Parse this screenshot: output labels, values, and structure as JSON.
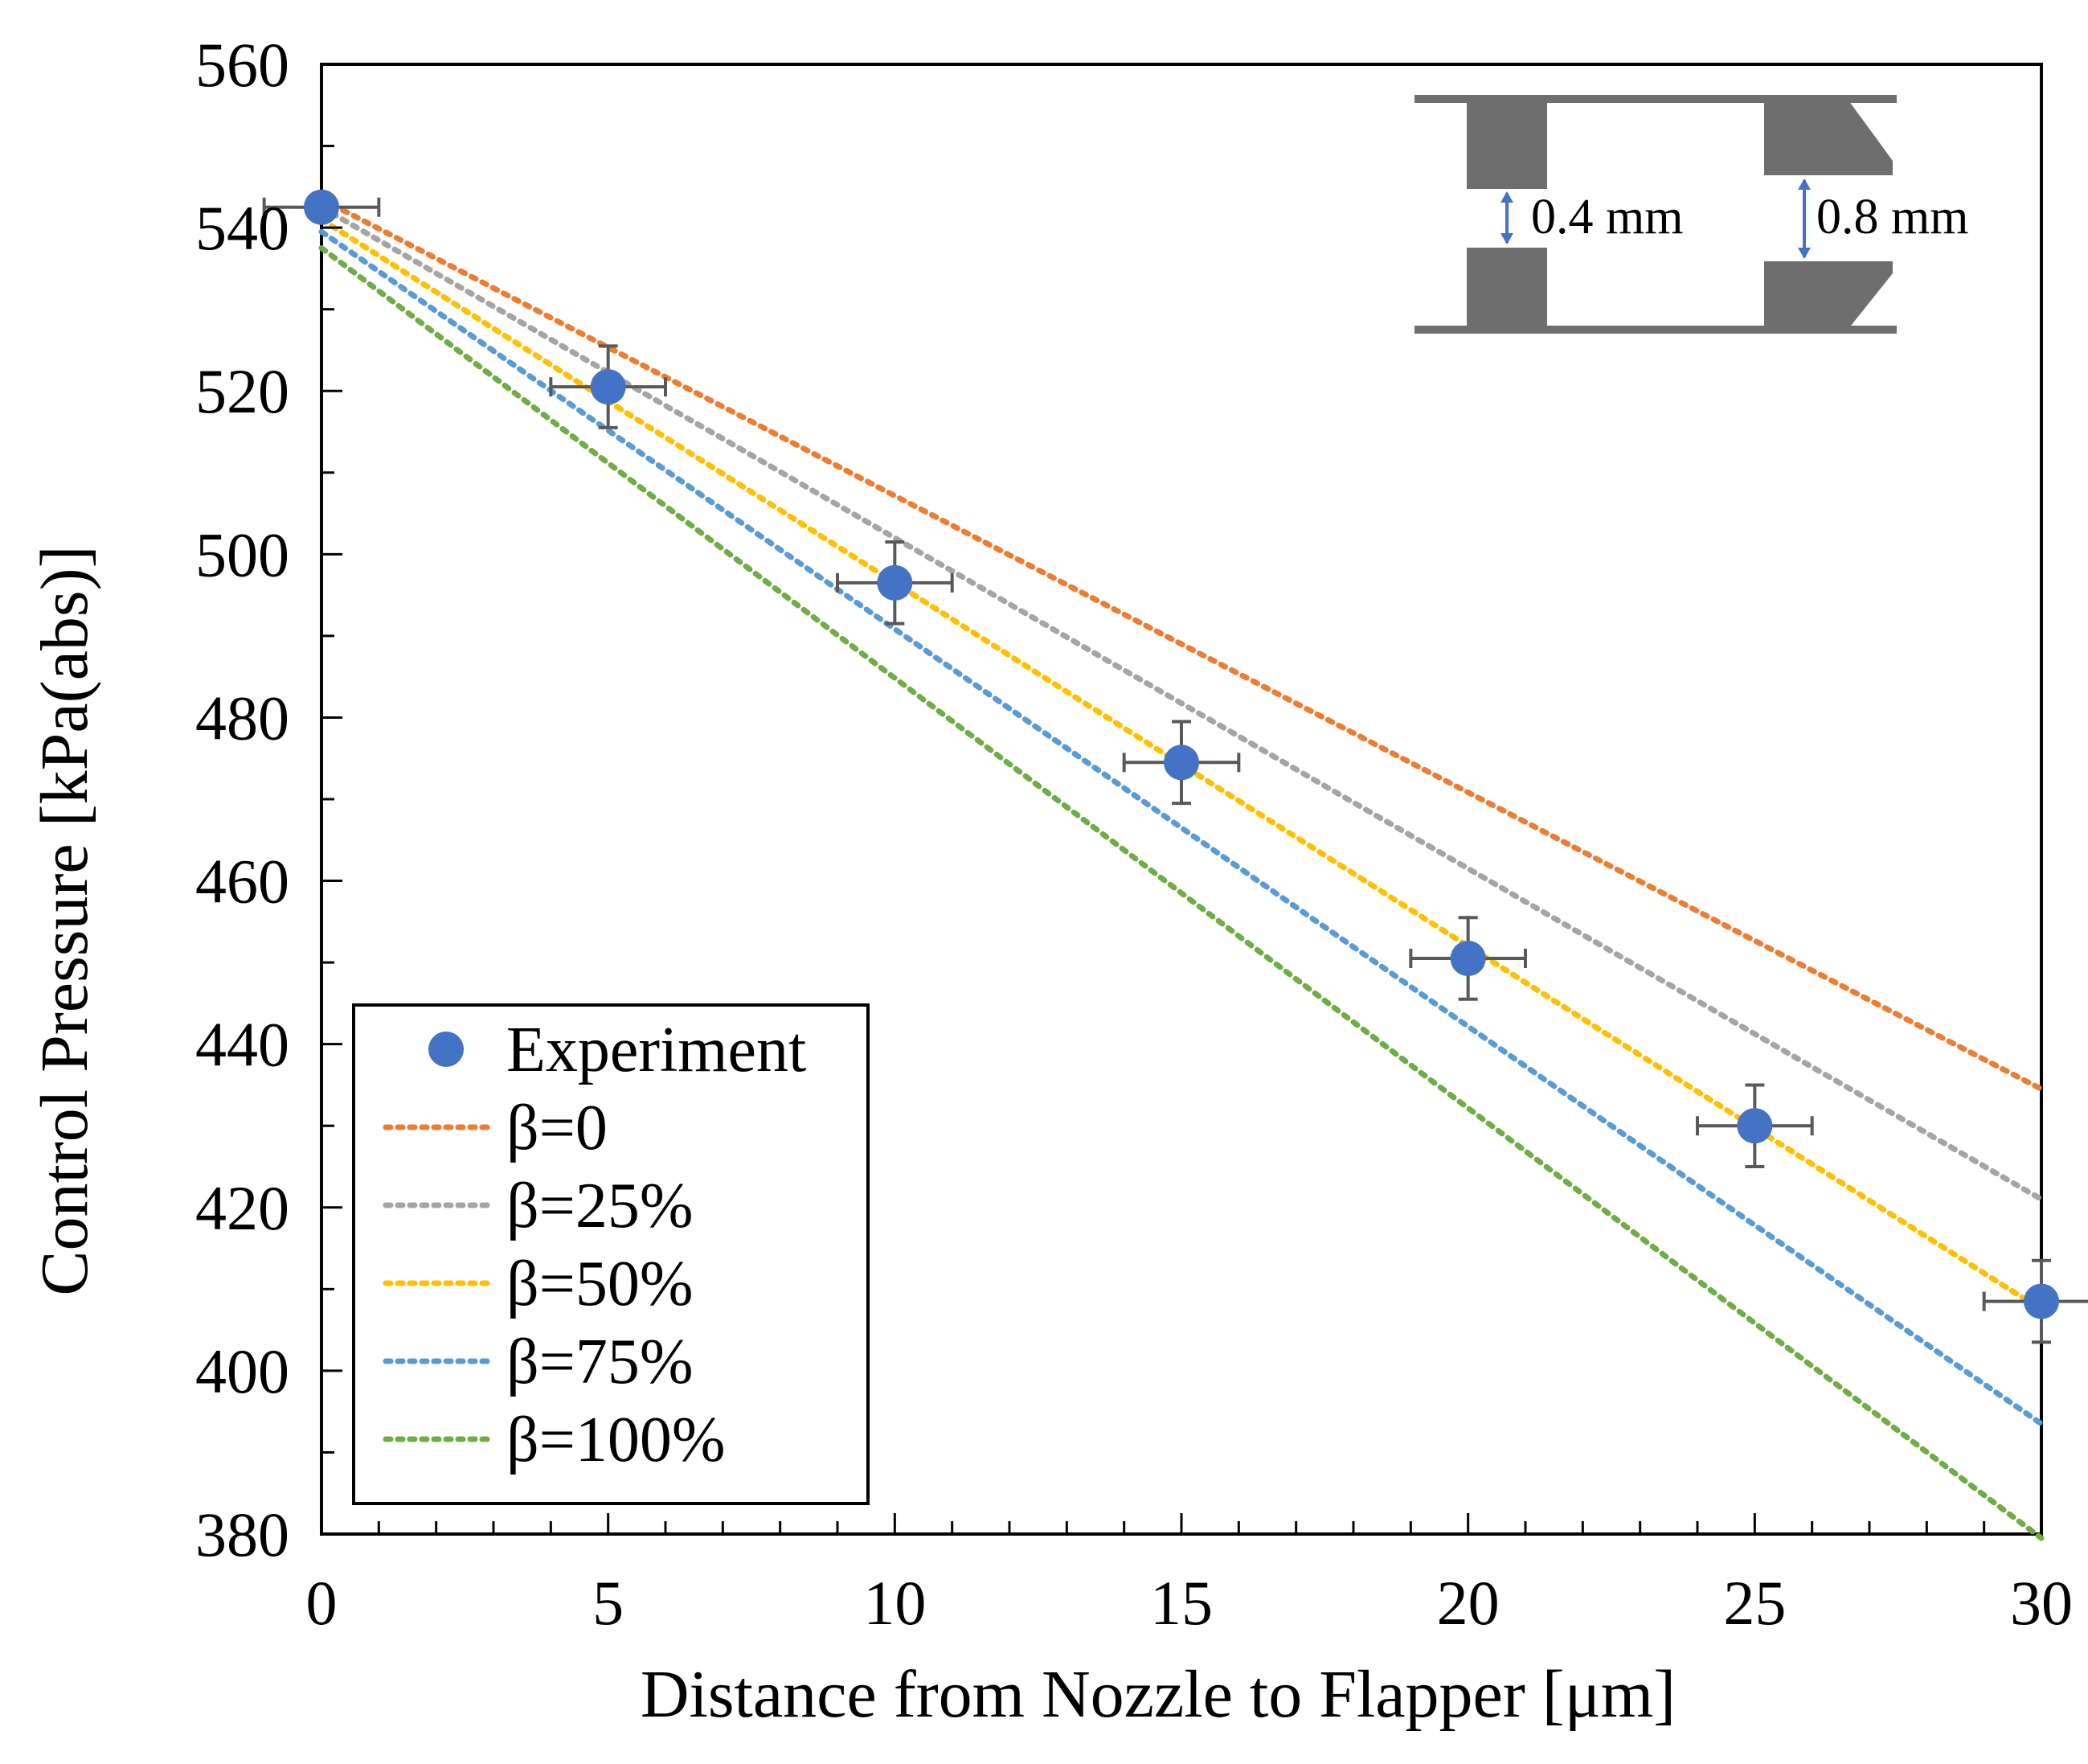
{
  "chart_data": {
    "type": "scatter",
    "title": "",
    "xlabel": "Distance from Nozzle to Flapper [μm]",
    "ylabel": "Control Pressure [kPa(abs)]",
    "xlim": [
      0,
      30
    ],
    "ylim": [
      380,
      560
    ],
    "xticks": [
      0,
      5,
      10,
      15,
      20,
      25,
      30
    ],
    "yticks": [
      380,
      400,
      420,
      440,
      460,
      480,
      500,
      520,
      540,
      560
    ],
    "x_minor_step": 1,
    "y_minor_step": 10,
    "grid": false,
    "legend_position": "bottom-left",
    "experiment": {
      "name": "Experiment",
      "color": "#4472C4",
      "x": [
        0,
        5,
        10,
        15,
        20,
        25,
        30
      ],
      "y": [
        542.5,
        520.5,
        496.5,
        474.5,
        450.5,
        430,
        408.5
      ],
      "x_err": [
        1,
        1,
        1,
        1,
        1,
        1,
        1
      ],
      "y_err": [
        0,
        5,
        5,
        5,
        5,
        5,
        5
      ]
    },
    "series": [
      {
        "name": "β=0",
        "color": "#ED7D31",
        "x": [
          0,
          30
        ],
        "values": [
          543.5,
          434.5
        ]
      },
      {
        "name": "β=25%",
        "color": "#A5A5A5",
        "x": [
          0,
          30
        ],
        "values": [
          542.5,
          421
        ]
      },
      {
        "name": "β=50%",
        "color": "#FFC000",
        "x": [
          0,
          30
        ],
        "values": [
          541,
          407.5
        ]
      },
      {
        "name": "β=75%",
        "color": "#5B9BD5",
        "x": [
          0,
          30
        ],
        "values": [
          539.5,
          393.5
        ]
      },
      {
        "name": "β=100%",
        "color": "#70AD47",
        "x": [
          0,
          30
        ],
        "values": [
          537.5,
          379.5
        ]
      }
    ],
    "inset": {
      "labels": [
        "0.4 mm",
        "0.8 mm"
      ],
      "color": "#6E6E6E",
      "arrow_color": "#4472C4"
    }
  }
}
